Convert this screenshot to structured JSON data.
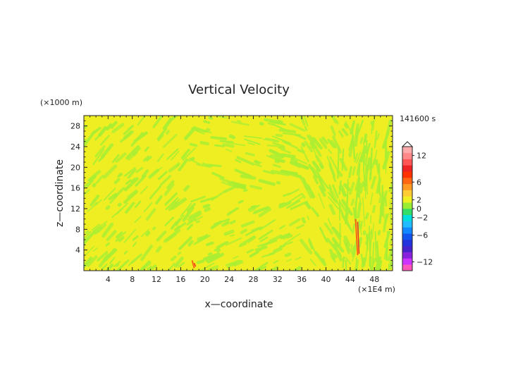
{
  "chart_data": {
    "type": "heatmap",
    "title": "Vertical Velocity",
    "xlabel": "x—coordinate",
    "ylabel": "z—coordinate",
    "x_unit": "(×1E4 m)",
    "y_unit": "(×1000 m)",
    "time_label": "141600 s",
    "xlim": [
      0,
      51
    ],
    "ylim": [
      0,
      30
    ],
    "x_ticks": [
      4,
      8,
      12,
      16,
      20,
      24,
      28,
      32,
      36,
      40,
      44,
      48
    ],
    "y_ticks": [
      4,
      8,
      12,
      16,
      20,
      24,
      28
    ],
    "colorbar": {
      "labels": [
        "12",
        "6",
        "2",
        "0",
        "−2",
        "−6",
        "−12"
      ],
      "label_values": [
        12,
        6,
        2,
        0,
        -2,
        -6,
        -12
      ],
      "range": [
        -14,
        14
      ],
      "colors": [
        "#ff55bb",
        "#cc33ff",
        "#8822dd",
        "#4422cc",
        "#2233dd",
        "#1155ee",
        "#1188ff",
        "#22bbff",
        "#00dddd",
        "#33dd66",
        "#99ee33",
        "#eeee22",
        "#ffcc33",
        "#ff9922",
        "#ff6611",
        "#ff3300",
        "#ee2222",
        "#ff5555",
        "#ff8888",
        "#ffaaaa"
      ]
    },
    "features": [
      {
        "kind": "red-streak",
        "x": 45,
        "z_range": [
          3,
          10
        ]
      },
      {
        "kind": "red-streak",
        "x": 18,
        "z_range": [
          0.5,
          2
        ]
      }
    ]
  }
}
